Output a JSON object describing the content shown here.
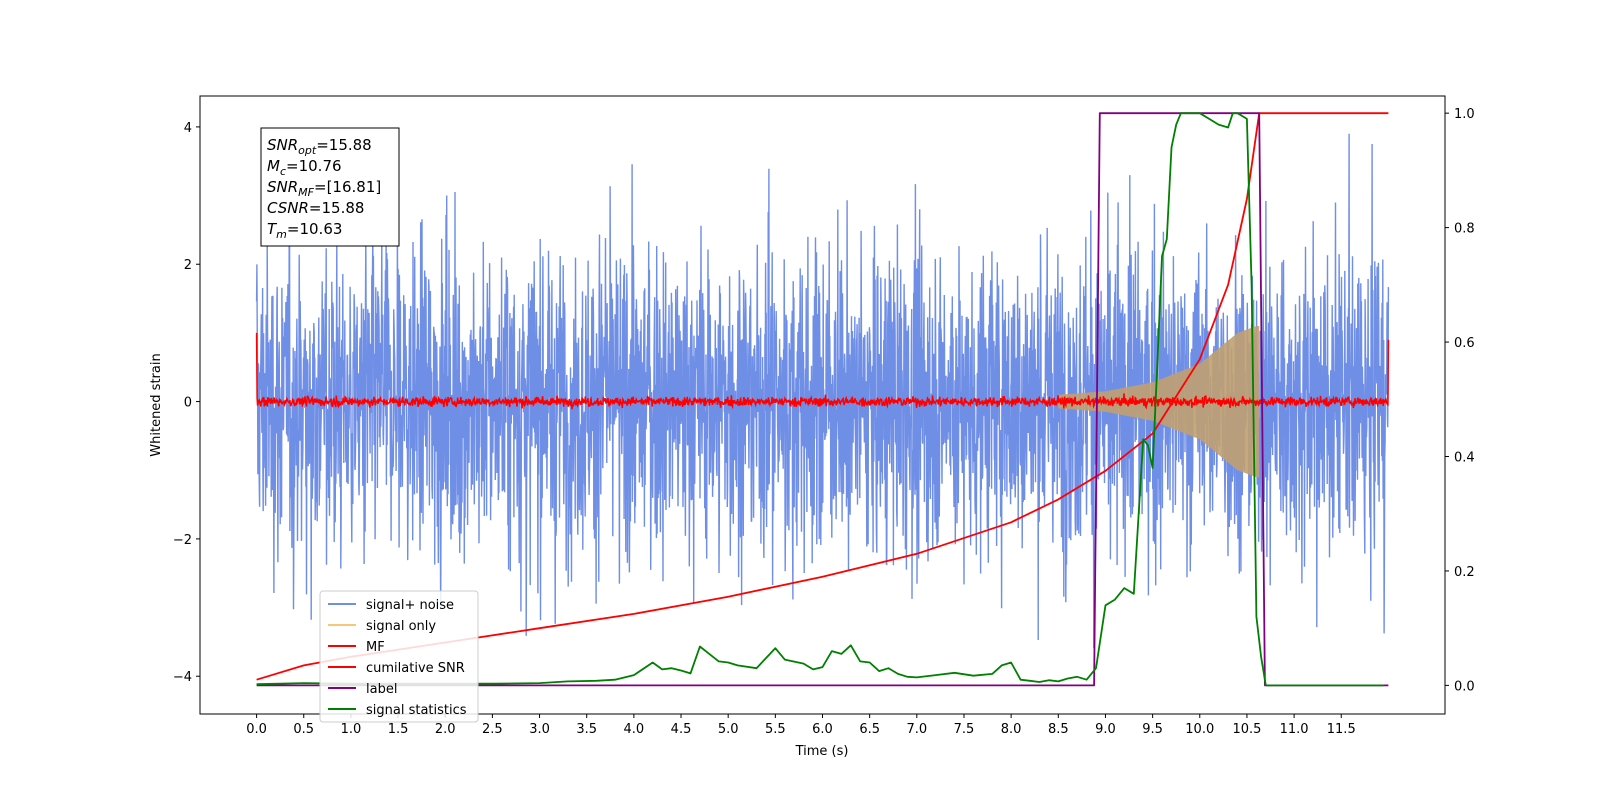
{
  "chart_data": {
    "type": "line",
    "xlabel": "Time (s)",
    "ylabel": "Whitened strain",
    "xlim": [
      -0.6,
      12.6
    ],
    "ylim": [
      -4.55,
      4.45
    ],
    "ylim_right": [
      -0.05,
      1.03
    ],
    "x_ticks": [
      "0.0",
      "0.5",
      "1.0",
      "1.5",
      "2.0",
      "2.5",
      "3.0",
      "3.5",
      "4.0",
      "4.5",
      "5.0",
      "5.5",
      "6.0",
      "6.5",
      "7.0",
      "7.5",
      "8.0",
      "8.5",
      "9.0",
      "9.5",
      "10.0",
      "10.5",
      "11.0",
      "11.5"
    ],
    "y_ticks_left": [
      "4",
      "2",
      "0",
      "−2",
      "−4"
    ],
    "y_ticks_left_values": [
      4,
      2,
      0,
      -2,
      -4
    ],
    "y_ticks_right": [
      "1.0",
      "0.8",
      "0.6",
      "0.4",
      "0.2",
      "0.0"
    ],
    "y_ticks_right_values": [
      1.0,
      0.8,
      0.6,
      0.4,
      0.2,
      0.0
    ],
    "legend": {
      "placement": "lower-left",
      "entries": [
        {
          "label": "signal+ noise",
          "color": "#6f8ee6"
        },
        {
          "label": "signal only",
          "color": "#f5c878"
        },
        {
          "label": "MF",
          "color": "#ff0000"
        },
        {
          "label": "cumilative SNR",
          "color": "#ff0000"
        },
        {
          "label": "label",
          "color": "#800080"
        },
        {
          "label": "signal statistics",
          "color": "#008000"
        }
      ]
    },
    "annotation": [
      {
        "name": "SNR",
        "sub": "opt",
        "value": "=15.88"
      },
      {
        "name": "M",
        "sub": "c",
        "value": "=10.76"
      },
      {
        "name": "SNR",
        "sub": "MF",
        "value": "=[16.81]"
      },
      {
        "name": "CSNR",
        "sub": "",
        "value": "=15.88"
      },
      {
        "name": "T",
        "sub": "m",
        "value": "=10.63"
      }
    ],
    "series": [
      {
        "name": "signal+ noise",
        "axis": "left",
        "color": "#6f8ee6",
        "x_range": [
          0.0,
          12.0
        ],
        "amplitude_typical": 2.5,
        "amplitude_max": 3.9
      },
      {
        "name": "signal only",
        "axis": "left",
        "color": "#c0a070",
        "x_range": [
          8.5,
          10.63
        ],
        "envelope": [
          [
            8.5,
            0.1
          ],
          [
            9.0,
            0.15
          ],
          [
            9.5,
            0.28
          ],
          [
            10.0,
            0.55
          ],
          [
            10.4,
            1.0
          ],
          [
            10.6,
            1.1
          ]
        ]
      },
      {
        "name": "MF",
        "axis": "left",
        "color": "#ff0000",
        "x_range": [
          0.0,
          12.0
        ],
        "start": 1.0,
        "end": 0.9,
        "noise": 0.07
      },
      {
        "name": "cumilative SNR",
        "axis": "right",
        "color": "#ff0000",
        "x": [
          0.0,
          0.5,
          1.0,
          2.0,
          3.0,
          4.0,
          5.0,
          6.0,
          7.0,
          8.0,
          8.5,
          9.0,
          9.5,
          10.0,
          10.3,
          10.5,
          10.63,
          11.0,
          11.5,
          12.0
        ],
        "y": [
          0.01,
          0.035,
          0.05,
          0.075,
          0.1,
          0.125,
          0.155,
          0.19,
          0.23,
          0.285,
          0.325,
          0.375,
          0.44,
          0.57,
          0.7,
          0.85,
          1.0,
          1.0,
          1.0,
          1.0
        ]
      },
      {
        "name": "label",
        "axis": "right",
        "color": "#800080",
        "x": [
          0.0,
          8.88,
          8.94,
          10.63,
          10.69,
          12.0
        ],
        "y": [
          0.0,
          0.0,
          1.0,
          1.0,
          0.0,
          0.0
        ]
      },
      {
        "name": "signal statistics",
        "axis": "right",
        "color": "#008000",
        "x": [
          0.0,
          0.5,
          1.0,
          1.5,
          2.0,
          2.5,
          3.0,
          3.3,
          3.6,
          3.8,
          4.0,
          4.2,
          4.3,
          4.4,
          4.5,
          4.6,
          4.7,
          4.8,
          4.9,
          5.0,
          5.1,
          5.3,
          5.5,
          5.6,
          5.8,
          5.9,
          6.0,
          6.1,
          6.2,
          6.3,
          6.4,
          6.5,
          6.6,
          6.7,
          6.8,
          6.9,
          7.0,
          7.2,
          7.4,
          7.6,
          7.8,
          7.9,
          8.0,
          8.1,
          8.2,
          8.3,
          8.4,
          8.5,
          8.6,
          8.7,
          8.8,
          8.9,
          9.0,
          9.1,
          9.15,
          9.2,
          9.3,
          9.4,
          9.45,
          9.5,
          9.55,
          9.6,
          9.65,
          9.7,
          9.75,
          9.8,
          9.9,
          10.0,
          10.1,
          10.2,
          10.3,
          10.35,
          10.4,
          10.45,
          10.5,
          10.55,
          10.6,
          10.65,
          10.7,
          11.0,
          11.5,
          11.95
        ],
        "y": [
          0.002,
          0.004,
          0.003,
          0.003,
          0.003,
          0.003,
          0.004,
          0.007,
          0.008,
          0.01,
          0.018,
          0.04,
          0.028,
          0.03,
          0.026,
          0.021,
          0.068,
          0.055,
          0.042,
          0.04,
          0.035,
          0.03,
          0.065,
          0.045,
          0.038,
          0.028,
          0.032,
          0.06,
          0.055,
          0.07,
          0.042,
          0.04,
          0.025,
          0.03,
          0.02,
          0.015,
          0.014,
          0.018,
          0.022,
          0.017,
          0.02,
          0.035,
          0.04,
          0.01,
          0.008,
          0.006,
          0.009,
          0.007,
          0.012,
          0.015,
          0.01,
          0.03,
          0.14,
          0.15,
          0.16,
          0.17,
          0.16,
          0.43,
          0.42,
          0.38,
          0.56,
          0.75,
          0.78,
          0.94,
          0.98,
          1.0,
          1.0,
          1.0,
          0.99,
          0.98,
          0.975,
          1.0,
          1.0,
          0.995,
          0.99,
          0.7,
          0.12,
          0.05,
          0.0,
          0.0,
          0.0,
          0.0
        ]
      }
    ]
  }
}
